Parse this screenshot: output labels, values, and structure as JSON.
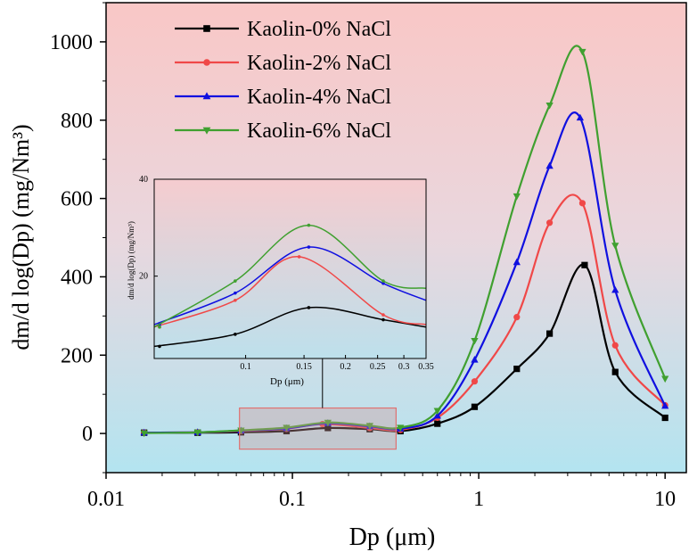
{
  "chart_data": {
    "type": "line",
    "x_scale": "log",
    "xlabel": "Dp (μm)",
    "ylabel": "dm/d log(Dp) (mg/Nm³)",
    "xlim": [
      0.01,
      13
    ],
    "ylim": [
      -100,
      1100
    ],
    "x_ticks": [
      {
        "v": 0.01,
        "label": "0.01"
      },
      {
        "v": 0.1,
        "label": "0.1"
      },
      {
        "v": 1,
        "label": "1"
      },
      {
        "v": 10,
        "label": "10"
      }
    ],
    "y_ticks": [
      {
        "v": 0,
        "label": "0"
      },
      {
        "v": 200,
        "label": "200"
      },
      {
        "v": 400,
        "label": "400"
      },
      {
        "v": 600,
        "label": "600"
      },
      {
        "v": 800,
        "label": "800"
      },
      {
        "v": 1000,
        "label": "1000"
      }
    ],
    "legend_position": "top-left",
    "series": [
      {
        "name": "Kaolin-0% NaCl",
        "color": "#000000",
        "marker": "square",
        "x": [
          0.016,
          0.031,
          0.053,
          0.093,
          0.155,
          0.26,
          0.38,
          0.6,
          0.95,
          1.6,
          2.4,
          3.7,
          5.4,
          10
        ],
        "y": [
          2,
          2,
          3,
          6,
          14,
          11,
          6,
          25,
          68,
          165,
          255,
          430,
          157,
          40
        ]
      },
      {
        "name": "Kaolin-2% NaCl",
        "color": "#f04848",
        "marker": "circle",
        "x": [
          0.016,
          0.031,
          0.053,
          0.093,
          0.145,
          0.26,
          0.38,
          0.6,
          0.95,
          1.6,
          2.4,
          3.6,
          5.4,
          10
        ],
        "y": [
          2,
          3,
          6,
          12,
          24,
          14,
          9,
          40,
          133,
          297,
          538,
          588,
          225,
          72
        ]
      },
      {
        "name": "Kaolin-4% NaCl",
        "color": "#1010e0",
        "marker": "triangle-up",
        "x": [
          0.016,
          0.031,
          0.053,
          0.093,
          0.155,
          0.26,
          0.38,
          0.6,
          0.95,
          1.6,
          2.4,
          3.5,
          5.4,
          10
        ],
        "y": [
          2,
          3,
          7,
          13,
          26,
          18,
          12,
          45,
          188,
          437,
          683,
          806,
          366,
          70
        ]
      },
      {
        "name": "Kaolin-6% NaCl",
        "color": "#40a030",
        "marker": "triangle-down",
        "x": [
          0.016,
          0.031,
          0.053,
          0.093,
          0.155,
          0.26,
          0.38,
          0.6,
          0.95,
          1.6,
          2.4,
          3.6,
          5.4,
          10
        ],
        "y": [
          1,
          3,
          8,
          15,
          28,
          20,
          15,
          58,
          237,
          606,
          838,
          975,
          480,
          140
        ]
      }
    ],
    "inset": {
      "xlabel": "Dp (μm)",
      "ylabel": "dm/d log(Dp) (mg/Nm³)",
      "x_scale": "log",
      "xlim": [
        0.053,
        0.35
      ],
      "ylim": [
        3,
        40
      ],
      "x_ticks": [
        {
          "v": 0.1,
          "label": "0.1"
        },
        {
          "v": 0.15,
          "label": "0.15"
        },
        {
          "v": 0.2,
          "label": "0.2"
        },
        {
          "v": 0.25,
          "label": "0.25"
        },
        {
          "v": 0.3,
          "label": "0.3"
        },
        {
          "v": 0.35,
          "label": "0.35"
        }
      ],
      "y_ticks": [
        {
          "v": 20,
          "label": "20"
        },
        {
          "v": 40,
          "label": "40"
        }
      ],
      "series": [
        {
          "name": "Kaolin-0% NaCl",
          "color": "#000000",
          "x": [
            0.053,
            0.093,
            0.155,
            0.26,
            0.35
          ],
          "y": [
            5.5,
            8,
            13.5,
            11,
            9.5
          ],
          "marker_x": [
            0.055,
            0.093,
            0.155,
            0.26
          ]
        },
        {
          "name": "Kaolin-2% NaCl",
          "color": "#f04848",
          "x": [
            0.053,
            0.093,
            0.145,
            0.26,
            0.35
          ],
          "y": [
            9.5,
            15,
            24,
            12,
            10
          ],
          "marker_x": [
            0.055,
            0.093,
            0.145,
            0.26
          ]
        },
        {
          "name": "Kaolin-4% NaCl",
          "color": "#1010e0",
          "x": [
            0.053,
            0.093,
            0.155,
            0.26,
            0.35
          ],
          "y": [
            10,
            16.5,
            26,
            18.5,
            15
          ],
          "marker_x": [
            0.055,
            0.093,
            0.155,
            0.26
          ]
        },
        {
          "name": "Kaolin-6% NaCl",
          "color": "#40a030",
          "x": [
            0.053,
            0.093,
            0.155,
            0.26,
            0.35
          ],
          "y": [
            9.5,
            19,
            30.5,
            19,
            17.5
          ],
          "marker_x": [
            0.055,
            0.093,
            0.155,
            0.26
          ]
        }
      ]
    },
    "zoom_region": {
      "x": [
        0.052,
        0.36
      ],
      "y": [
        -40,
        65
      ]
    }
  }
}
